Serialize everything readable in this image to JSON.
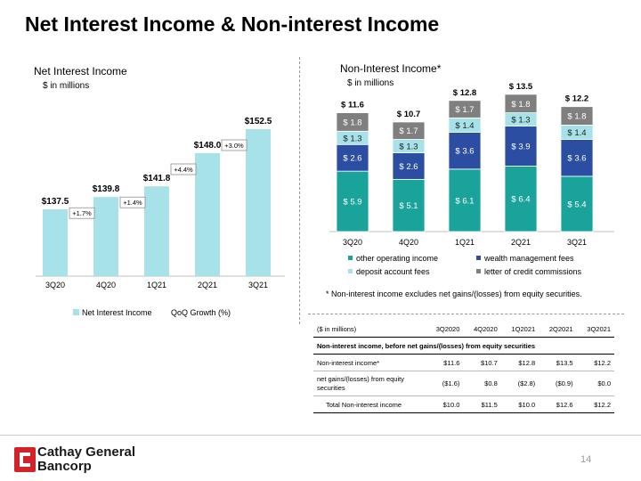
{
  "title": "Net Interest Income & Non-interest Income",
  "footnote": "* Non-interest income excludes net gains/(losses) from equity securities.",
  "page_number": "14",
  "logo": {
    "line1": "Cathay General",
    "line2": "Bancorp"
  },
  "colors": {
    "nii_bar": "#a6e2e7",
    "other_operating": "#1aa39a",
    "wealth_management": "#2b4ea2",
    "deposit_account": "#a6e2e7",
    "letter_of_credit": "#7f7f7f"
  },
  "chart_data": [
    {
      "type": "bar",
      "title": "Net Interest Income",
      "subtitle": "$ in millions",
      "categories": [
        "3Q20",
        "4Q20",
        "1Q21",
        "2Q21",
        "3Q21"
      ],
      "values": [
        137.5,
        139.8,
        141.8,
        148.0,
        152.5
      ],
      "value_labels": [
        "$137.5",
        "$139.8",
        "$141.8",
        "$148.0",
        "$152.5"
      ],
      "growth_labels": [
        "+1.7%",
        "+1.4%",
        "+4.4%",
        "+3.0%"
      ],
      "legend": [
        "Net Interest Income",
        "QoQ Growth (%)"
      ],
      "ylim": [
        125,
        155
      ]
    },
    {
      "type": "bar",
      "stacked": true,
      "title": "Non-Interest Income*",
      "subtitle": "$ in millions",
      "categories": [
        "3Q20",
        "4Q20",
        "1Q21",
        "2Q21",
        "3Q21"
      ],
      "series": [
        {
          "name": "other operating income",
          "values": [
            5.9,
            5.1,
            6.1,
            6.4,
            5.4
          ],
          "labels": [
            "$ 5.9",
            "$ 5.1",
            "$ 6.1",
            "$ 6.4",
            "$ 5.4"
          ]
        },
        {
          "name": "wealth management fees",
          "values": [
            2.6,
            2.6,
            3.6,
            3.9,
            3.6
          ],
          "labels": [
            "$ 2.6",
            "$ 2.6",
            "$ 3.6",
            "$ 3.9",
            "$ 3.6"
          ]
        },
        {
          "name": "deposit account fees",
          "values": [
            1.3,
            1.3,
            1.4,
            1.3,
            1.4
          ],
          "labels": [
            "$ 1.3",
            "$ 1.3",
            "$ 1.4",
            "$ 1.3",
            "$ 1.4"
          ]
        },
        {
          "name": "letter of credit commissions",
          "values": [
            1.8,
            1.7,
            1.7,
            1.8,
            1.8
          ],
          "labels": [
            "$ 1.8",
            "$ 1.7",
            "$ 1.7",
            "$ 1.8",
            "$ 1.8"
          ]
        }
      ],
      "totals": [
        "$ 11.6",
        "$ 10.7",
        "$ 12.8",
        "$ 13.5",
        "$ 12.2"
      ],
      "legend_order": [
        "other operating income",
        "wealth management fees",
        "deposit account fees",
        "letter of credit commissions"
      ],
      "legend_placement": "bottom"
    },
    {
      "type": "table",
      "columns": [
        "($ in millions)",
        "3Q2020",
        "4Q2020",
        "1Q2021",
        "2Q2021",
        "3Q2021"
      ],
      "section_header": "Non-interest income, before net gains/(losses) from equity securities",
      "rows": [
        [
          "Non-interest income*",
          "$11.6",
          "$10.7",
          "$12.8",
          "$13.5",
          "$12.2"
        ],
        [
          "net gains/(losses) from equity securities",
          "($1.6)",
          "$0.8",
          "($2.8)",
          "($0.9)",
          "$0.0"
        ],
        [
          "Total Non-interest income",
          "$10.0",
          "$11.5",
          "$10.0",
          "$12.6",
          "$12.2"
        ]
      ]
    }
  ]
}
